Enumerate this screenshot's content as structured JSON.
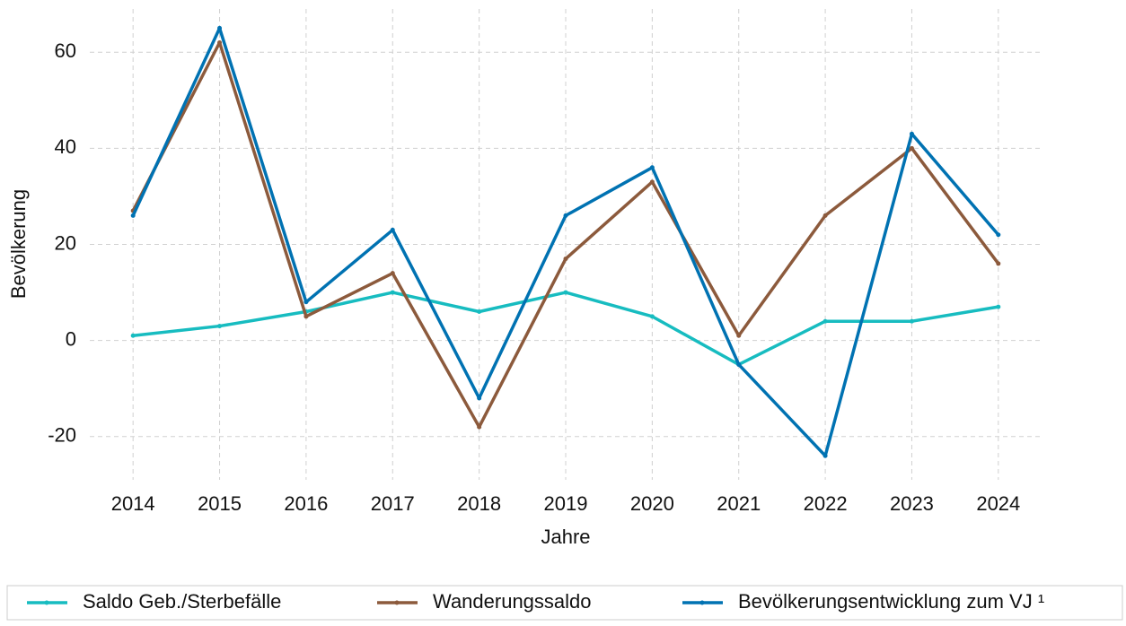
{
  "chart_data": {
    "type": "line",
    "x_label": "Jahre",
    "y_label": "Bevölkerung",
    "x": [
      2014,
      2015,
      2016,
      2017,
      2018,
      2019,
      2020,
      2021,
      2022,
      2023,
      2024
    ],
    "xlim": [
      2013.5,
      2024.5
    ],
    "xticks": [
      2014,
      2015,
      2016,
      2017,
      2018,
      2019,
      2020,
      2021,
      2022,
      2023,
      2024
    ],
    "ylim": [
      -29,
      69
    ],
    "yticks": [
      -20,
      0,
      20,
      40,
      60
    ],
    "grid": true,
    "legend": "bottom",
    "series": [
      {
        "name": "Saldo Geb./Sterbefälle",
        "color": "#17bcc0",
        "values": [
          1,
          3,
          6,
          10,
          6,
          10,
          5,
          -5,
          4,
          4,
          7
        ]
      },
      {
        "name": "Wanderungssaldo",
        "color": "#8c5a3c",
        "values": [
          27,
          62,
          5,
          14,
          -18,
          17,
          33,
          1,
          26,
          40,
          16
        ]
      },
      {
        "name": "Bevölkerungsentwicklung zum VJ ¹",
        "color": "#0072b2",
        "values": [
          26,
          65,
          8,
          23,
          -12,
          26,
          36,
          -5,
          -24,
          43,
          22
        ]
      }
    ]
  }
}
